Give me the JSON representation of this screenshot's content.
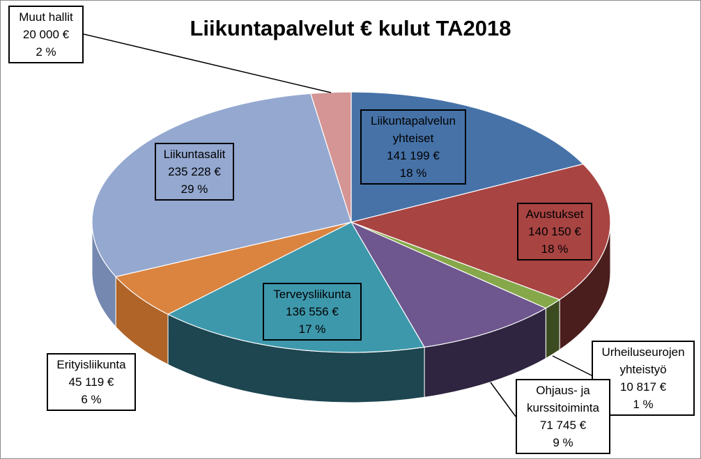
{
  "chart_data": {
    "type": "pie",
    "title": "Liikuntapalvelut € kulut TA2018",
    "slices": [
      {
        "name": "Liikuntapalvelun yhteiset",
        "value": 141199,
        "value_label": "141 199 €",
        "pct_label": "18 %",
        "color": "#4672a8",
        "side_color": "#2a4466"
      },
      {
        "name": "Avustukset",
        "value": 140150,
        "value_label": "140 150 €",
        "pct_label": "18 %",
        "color": "#a84442",
        "side_color": "#4a1e1d"
      },
      {
        "name": "Urheiluseurojen yhteistyö",
        "value": 10817,
        "value_label": "10 817 €",
        "pct_label": "1 %",
        "color": "#86a84a",
        "side_color": "#3c4c20"
      },
      {
        "name": "Ohjaus- ja kurssitoiminta",
        "value": 71745,
        "value_label": "71 745 €",
        "pct_label": "9 %",
        "color": "#6e568e",
        "side_color": "#2f2540"
      },
      {
        "name": "Terveysliikunta",
        "value": 136556,
        "value_label": "136 556 €",
        "pct_label": "17 %",
        "color": "#3e98ac",
        "side_color": "#1d4650"
      },
      {
        "name": "Erityisliikunta",
        "value": 45119,
        "value_label": "45 119 €",
        "pct_label": "6 %",
        "color": "#da8440",
        "side_color": "#b06428"
      },
      {
        "name": "Liikuntasalit",
        "value": 235228,
        "value_label": "235 228 €",
        "pct_label": "29 %",
        "color": "#94a8d0",
        "side_color": "#7488b0"
      },
      {
        "name": "Muut hallit",
        "value": 20000,
        "value_label": "20 000 €",
        "pct_label": "2 %",
        "color": "#d49594",
        "side_color": "#a06a6a"
      }
    ],
    "label_lines": {
      "name_lines": [
        [
          "Liikuntapalvelun",
          "yhteiset"
        ],
        [
          "Avustukset"
        ],
        [
          "Urheiluseurojen",
          "yhteistyö"
        ],
        [
          "Ohjaus- ja",
          "kurssitoiminta"
        ],
        [
          "Terveysliikunta"
        ],
        [
          "Erityisliikunta"
        ],
        [
          "Liikuntasalit"
        ],
        [
          "Muut hallit"
        ]
      ]
    }
  }
}
